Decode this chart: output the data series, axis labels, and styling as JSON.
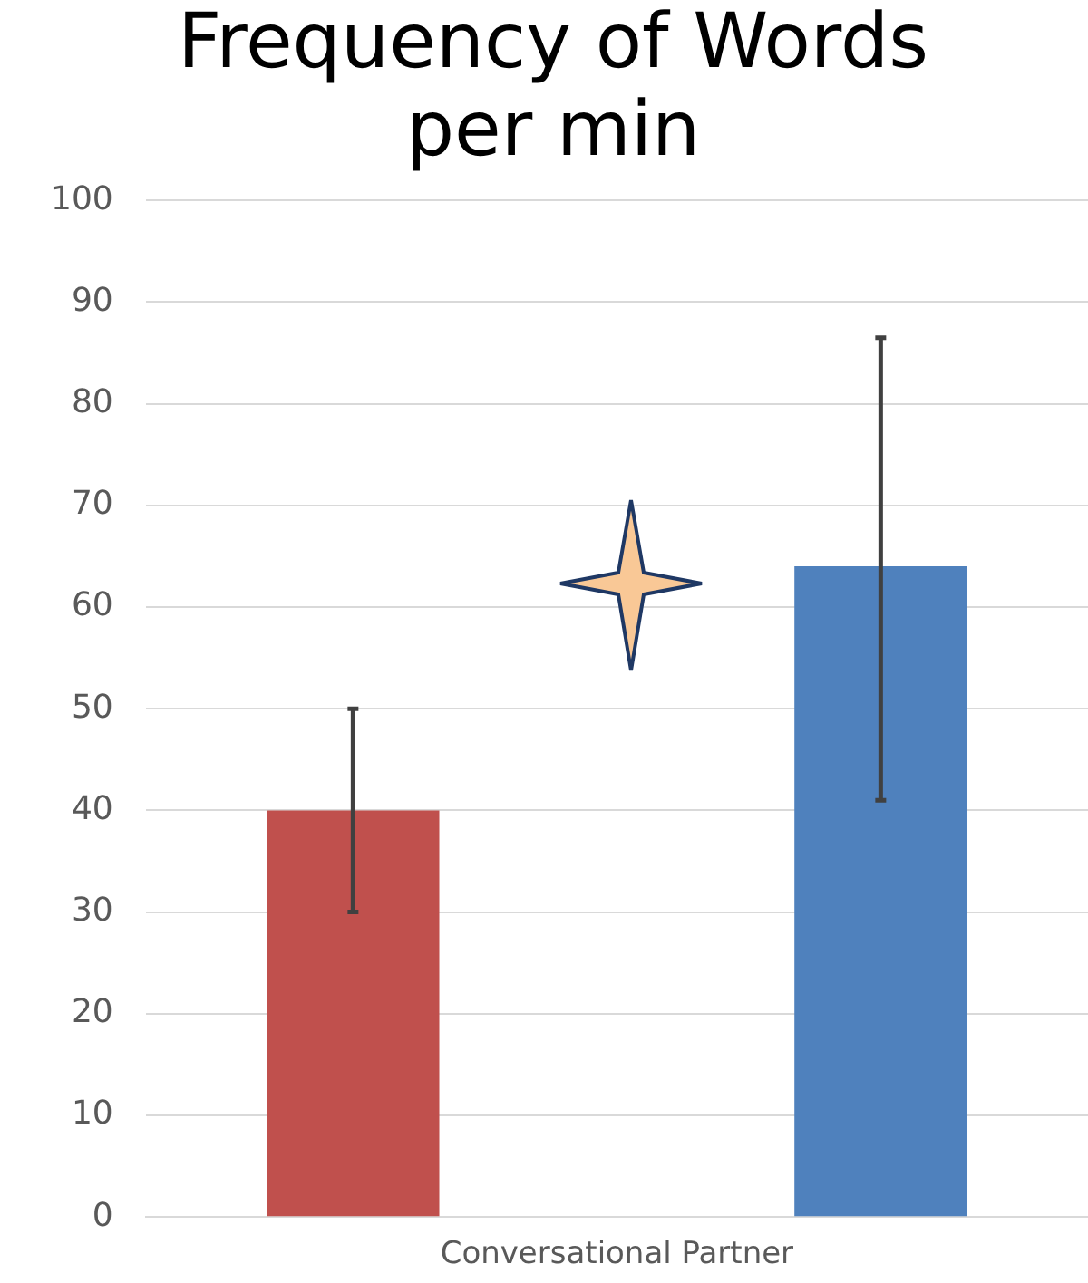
{
  "chart_data": {
    "type": "bar",
    "title": [
      "Frequency of Words",
      "per min"
    ],
    "categories": [
      "Conversational Partner"
    ],
    "series": [
      {
        "color": "#c0504d",
        "values": [
          40
        ],
        "errors": [
          [
            30,
            50
          ]
        ]
      },
      {
        "color": "#4f81bd",
        "values": [
          64
        ],
        "errors": [
          [
            41,
            86.5
          ]
        ]
      }
    ],
    "ylim": [
      0,
      100
    ],
    "yticks": [
      0,
      10,
      20,
      30,
      40,
      50,
      60,
      70,
      80,
      90,
      100
    ],
    "grid": "y",
    "legend": false
  }
}
